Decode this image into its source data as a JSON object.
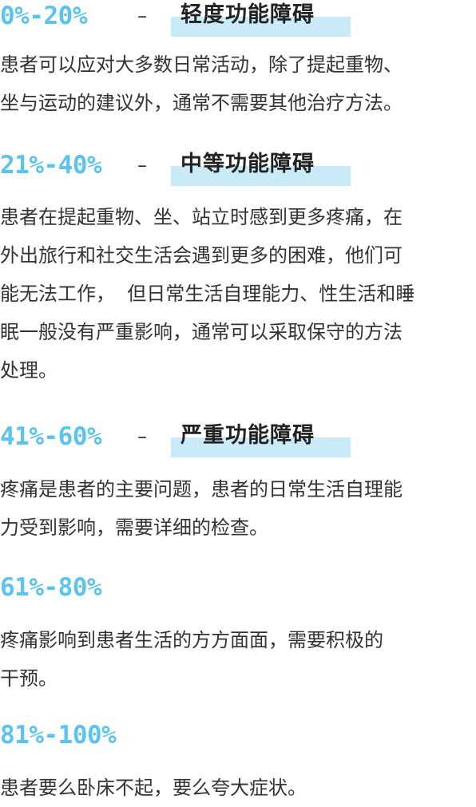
{
  "sections": [
    {
      "range": "0%-20%",
      "dash": "–",
      "level": "轻度功能障碍",
      "lines": [
        "患者可以应对大多数日常活动，除了提起重物、",
        "坐与运动的建议外，通常不需要其他治疗方法。"
      ]
    },
    {
      "range": "21%-40%",
      "dash": "–",
      "level": "中等功能障碍",
      "lines": [
        "患者在提起重物、坐、站立时感到更多疼痛，在",
        "外出旅行和社交生活会遇到更多的困难，他们可",
        "能无法工作，  但日常生活自理能力、性生活和睡",
        "眠一般没有严重影响，通常可以采取保守的方法",
        "处理。"
      ]
    },
    {
      "range": "41%-60%",
      "dash": "–",
      "level": "严重功能障碍",
      "lines": [
        "疼痛是患者的主要问题，患者的日常生活自理能",
        "力受到影响，需要详细的检查。"
      ]
    },
    {
      "range": "61%-80%",
      "lines": [
        "疼痛影响到患者生活的方方面面，需要积极的",
        "干预。"
      ]
    },
    {
      "range": "81%-100%",
      "lines": [
        "患者要么卧床不起，要么夸大症状。"
      ]
    }
  ]
}
